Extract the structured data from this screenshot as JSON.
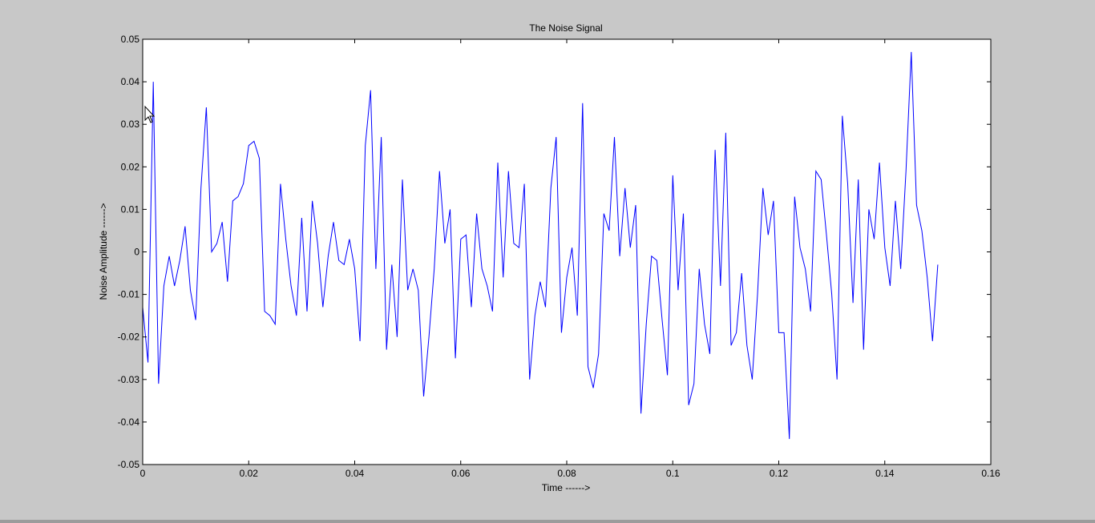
{
  "chart_data": {
    "type": "line",
    "title": "The Noise Signal",
    "xlabel": "Time  ------>",
    "ylabel": "Noise Amplitude  ------>",
    "xlim": [
      0,
      0.16
    ],
    "ylim": [
      -0.05,
      0.05
    ],
    "grid": false,
    "xticks": [
      0,
      0.02,
      0.04,
      0.06,
      0.08,
      0.1,
      0.12,
      0.14,
      0.16
    ],
    "xtick_labels": [
      "0",
      "0.02",
      "0.04",
      "0.06",
      "0.08",
      "0.1",
      "0.12",
      "0.14",
      "0.16"
    ],
    "yticks": [
      -0.05,
      -0.04,
      -0.03,
      -0.02,
      -0.01,
      0,
      0.01,
      0.02,
      0.03,
      0.04,
      0.05
    ],
    "ytick_labels": [
      "-0.05",
      "-0.04",
      "-0.03",
      "-0.02",
      "-0.01",
      "0",
      "0.01",
      "0.02",
      "0.03",
      "0.04",
      "0.05"
    ],
    "series": [
      {
        "color": "#0000ff",
        "x": [
          0,
          0.001,
          0.002,
          0.003,
          0.004,
          0.005,
          0.006,
          0.007,
          0.008,
          0.009,
          0.01,
          0.011,
          0.012,
          0.013,
          0.014,
          0.015,
          0.016,
          0.017,
          0.018,
          0.019,
          0.02,
          0.021,
          0.022,
          0.023,
          0.024,
          0.025,
          0.026,
          0.027,
          0.028,
          0.029,
          0.03,
          0.031,
          0.032,
          0.033,
          0.034,
          0.035,
          0.036,
          0.037,
          0.038,
          0.039,
          0.04,
          0.041,
          0.042,
          0.043,
          0.044,
          0.045,
          0.046,
          0.047,
          0.048,
          0.049,
          0.05,
          0.051,
          0.052,
          0.053,
          0.054,
          0.055,
          0.056,
          0.057,
          0.058,
          0.059,
          0.06,
          0.061,
          0.062,
          0.063,
          0.064,
          0.065,
          0.066,
          0.067,
          0.068,
          0.069,
          0.07,
          0.071,
          0.072,
          0.073,
          0.074,
          0.075,
          0.076,
          0.077,
          0.078,
          0.079,
          0.08,
          0.081,
          0.082,
          0.083,
          0.084,
          0.085,
          0.086,
          0.087,
          0.088,
          0.089,
          0.09,
          0.091,
          0.092,
          0.093,
          0.094,
          0.095,
          0.096,
          0.097,
          0.098,
          0.099,
          0.1,
          0.101,
          0.102,
          0.103,
          0.104,
          0.105,
          0.106,
          0.107,
          0.108,
          0.109,
          0.11,
          0.111,
          0.112,
          0.113,
          0.114,
          0.115,
          0.116,
          0.117,
          0.118,
          0.119,
          0.12,
          0.121,
          0.122,
          0.123,
          0.124,
          0.125,
          0.126,
          0.127,
          0.128,
          0.129,
          0.13,
          0.131,
          0.132,
          0.133,
          0.134,
          0.135,
          0.136,
          0.137,
          0.138,
          0.139,
          0.14,
          0.141,
          0.142,
          0.143,
          0.144,
          0.145,
          0.146,
          0.147,
          0.148,
          0.149,
          0.15
        ],
        "y": [
          -0.013,
          -0.026,
          0.04,
          -0.031,
          -0.008,
          -0.001,
          -0.008,
          -0.002,
          0.006,
          -0.009,
          -0.016,
          0.015,
          0.034,
          0.0,
          0.002,
          0.007,
          -0.007,
          0.012,
          0.013,
          0.016,
          0.025,
          0.026,
          0.022,
          -0.014,
          -0.015,
          -0.017,
          0.016,
          0.003,
          -0.008,
          -0.015,
          0.008,
          -0.014,
          0.012,
          0.002,
          -0.013,
          -0.001,
          0.007,
          -0.002,
          -0.003,
          0.003,
          -0.004,
          -0.021,
          0.025,
          0.038,
          -0.004,
          0.027,
          -0.023,
          -0.003,
          -0.02,
          0.017,
          -0.009,
          -0.004,
          -0.009,
          -0.034,
          -0.02,
          -0.004,
          0.019,
          0.002,
          0.01,
          -0.025,
          0.003,
          0.004,
          -0.013,
          0.009,
          -0.004,
          -0.008,
          -0.014,
          0.021,
          -0.006,
          0.019,
          0.002,
          0.001,
          0.016,
          -0.03,
          -0.015,
          -0.007,
          -0.013,
          0.015,
          0.027,
          -0.019,
          -0.006,
          0.001,
          -0.015,
          0.035,
          -0.027,
          -0.032,
          -0.024,
          0.009,
          0.005,
          0.027,
          -0.001,
          0.015,
          0.001,
          0.011,
          -0.038,
          -0.017,
          -0.001,
          -0.002,
          -0.016,
          -0.029,
          0.018,
          -0.009,
          0.009,
          -0.036,
          -0.031,
          -0.004,
          -0.017,
          -0.024,
          0.024,
          -0.008,
          0.028,
          -0.022,
          -0.019,
          -0.005,
          -0.022,
          -0.03,
          -0.01,
          0.015,
          0.004,
          0.012,
          -0.019,
          -0.019,
          -0.044,
          0.013,
          0.001,
          -0.004,
          -0.014,
          0.019,
          0.017,
          0.004,
          -0.01,
          -0.03,
          0.032,
          0.016,
          -0.012,
          0.017,
          -0.023,
          0.01,
          0.003,
          0.021,
          0.001,
          -0.008,
          0.012,
          -0.004,
          0.019,
          0.047,
          0.011,
          0.005,
          -0.006,
          -0.021,
          -0.003
        ]
      }
    ]
  }
}
